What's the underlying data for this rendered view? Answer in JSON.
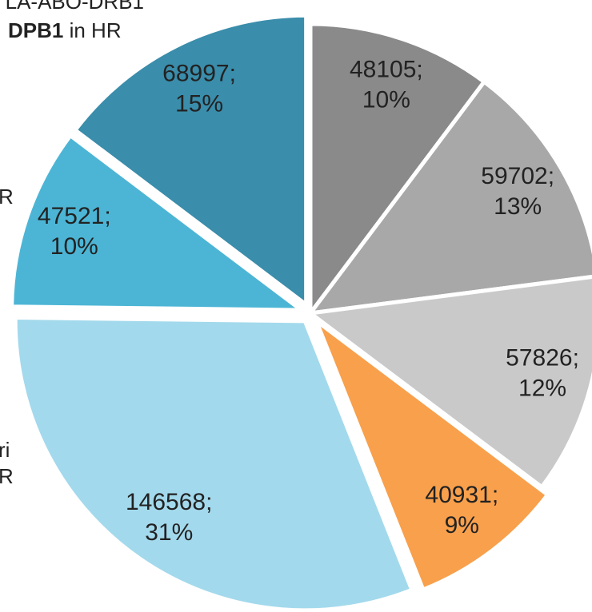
{
  "chart_data": {
    "type": "pie",
    "text_fragments": [
      "LA-ABO-DRB1",
      "DPB1",
      " in HR",
      "R",
      "ri",
      "R"
    ],
    "values": [
      48105,
      59702,
      57826,
      40931,
      146568,
      47521,
      68997
    ],
    "value_labels": [
      "48105;",
      "59702;",
      "57826;",
      "40931;",
      "146568;",
      "47521;",
      "68997;"
    ],
    "percent_labels": [
      "10%",
      "13%",
      "12%",
      "9%",
      "31%",
      "10%",
      "15%"
    ],
    "colors": [
      "#8a8a8a",
      "#a8a8a8",
      "#c9c9c9",
      "#f8a04c",
      "#a3d9ec",
      "#4cb5d5",
      "#3a8dab"
    ],
    "exploded": [
      false,
      false,
      false,
      true,
      true,
      true,
      true
    ]
  }
}
